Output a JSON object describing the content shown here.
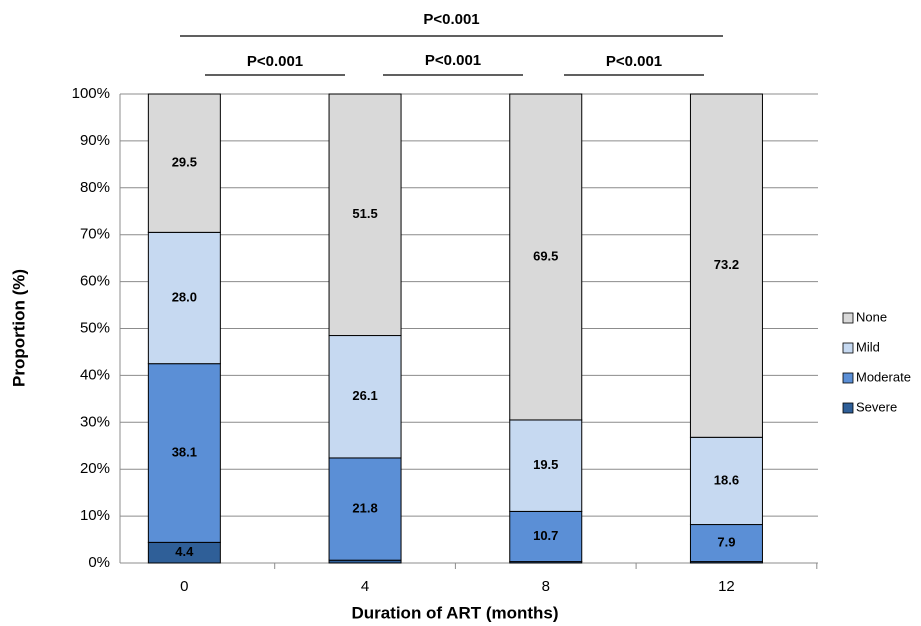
{
  "chart_data": {
    "type": "stacked_bar",
    "x_label": "Duration of ART (months)",
    "y_label": "Proportion (%)",
    "categories": [
      "0",
      "4",
      "8",
      "12"
    ],
    "series": [
      {
        "name": "Severe",
        "color": "#2f5f98",
        "values": [
          4.4,
          0.6,
          0.3,
          0.3
        ],
        "value_labels": [
          "4.4",
          null,
          null,
          null
        ]
      },
      {
        "name": "Moderate",
        "color": "#5b8fd6",
        "values": [
          38.1,
          21.8,
          10.7,
          7.9
        ],
        "value_labels": [
          "38.1",
          "21.8",
          "10.7",
          "7.9"
        ]
      },
      {
        "name": "Mild",
        "color": "#c6d9f1",
        "values": [
          28.0,
          26.1,
          19.5,
          18.6
        ],
        "value_labels": [
          "28.0",
          "26.1",
          "19.5",
          "18.6"
        ]
      },
      {
        "name": "None",
        "color": "#d9d9d9",
        "values": [
          29.5,
          51.5,
          69.5,
          73.2
        ],
        "value_labels": [
          "29.5",
          "51.5",
          "69.5",
          "73.2"
        ]
      }
    ],
    "ylim": [
      0,
      100
    ],
    "yticks": [
      {
        "value": 0,
        "label": "0%"
      },
      {
        "value": 10,
        "label": "10%"
      },
      {
        "value": 20,
        "label": "20%"
      },
      {
        "value": 30,
        "label": "30%"
      },
      {
        "value": 40,
        "label": "40%"
      },
      {
        "value": 50,
        "label": "50%"
      },
      {
        "value": 60,
        "label": "60%"
      },
      {
        "value": 70,
        "label": "70%"
      },
      {
        "value": 80,
        "label": "80%"
      },
      {
        "value": 90,
        "label": "90%"
      },
      {
        "value": 100,
        "label": "100%"
      }
    ],
    "grid": true,
    "legend": "right",
    "annotations": [
      "P<0.001",
      "P<0.001",
      "P<0.001",
      "P<0.001"
    ]
  }
}
